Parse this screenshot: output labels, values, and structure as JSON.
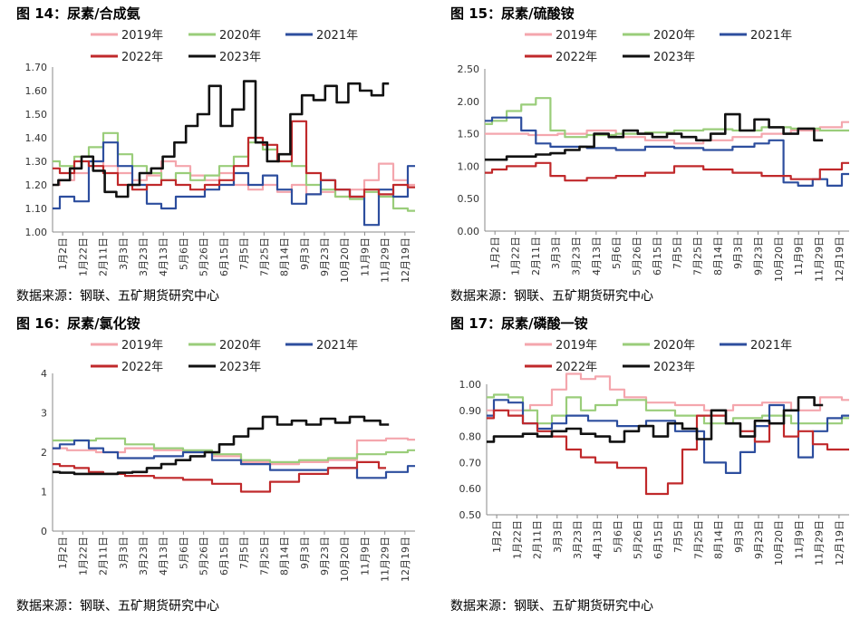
{
  "legend_colors": [
    "#f4a6ad",
    "#9acd7a",
    "#2d4e9e",
    "#c0292b",
    "#111111"
  ],
  "source_text": "数据来源：钢联、五矿期货研究中心",
  "x_ticks": [
    "1月2日",
    "1月22日",
    "2月11日",
    "3月3日",
    "3月23日",
    "4月13日",
    "5月6日",
    "5月26日",
    "6月15日",
    "7月5日",
    "7月25日",
    "8月14日",
    "9月3日",
    "9月23日",
    "10月20日",
    "11月9日",
    "11月29日",
    "12月19日"
  ],
  "chart_data": [
    {
      "type": "line",
      "title": "图 14：尿素/合成氨",
      "ylim": [
        1.0,
        1.7
      ],
      "yticks": [
        "1.00",
        "1.10",
        "1.20",
        "1.30",
        "1.40",
        "1.50",
        "1.60",
        "1.70"
      ],
      "x_domain": [
        0,
        250
      ],
      "series": [
        {
          "name": "2019年",
          "x": [
            0,
            10,
            20,
            30,
            40,
            50,
            60,
            70,
            80,
            90,
            100,
            110,
            120,
            130,
            140,
            150,
            160,
            170,
            180,
            190,
            200,
            210,
            220,
            230,
            240,
            250
          ],
          "values": [
            1.2,
            1.22,
            1.25,
            1.3,
            1.28,
            1.25,
            1.22,
            1.24,
            1.3,
            1.28,
            1.24,
            1.22,
            1.25,
            1.2,
            1.18,
            1.2,
            1.17,
            1.2,
            1.16,
            1.17,
            1.15,
            1.18,
            1.22,
            1.29,
            1.22,
            1.2
          ]
        },
        {
          "name": "2020年",
          "x": [
            0,
            10,
            20,
            30,
            40,
            50,
            60,
            70,
            80,
            90,
            100,
            110,
            120,
            130,
            140,
            150,
            160,
            170,
            180,
            190,
            200,
            210,
            220,
            230,
            240,
            250
          ],
          "values": [
            1.3,
            1.28,
            1.32,
            1.36,
            1.42,
            1.33,
            1.28,
            1.25,
            1.22,
            1.25,
            1.22,
            1.24,
            1.28,
            1.32,
            1.38,
            1.35,
            1.3,
            1.28,
            1.2,
            1.18,
            1.15,
            1.14,
            1.17,
            1.15,
            1.1,
            1.09
          ]
        },
        {
          "name": "2021年",
          "x": [
            0,
            10,
            20,
            30,
            40,
            50,
            60,
            70,
            80,
            90,
            100,
            110,
            120,
            130,
            140,
            150,
            160,
            170,
            180,
            190,
            200,
            210,
            220,
            230,
            240,
            250
          ],
          "values": [
            1.1,
            1.15,
            1.13,
            1.3,
            1.38,
            1.28,
            1.2,
            1.12,
            1.1,
            1.15,
            1.15,
            1.18,
            1.2,
            1.25,
            1.2,
            1.24,
            1.18,
            1.12,
            1.16,
            1.22,
            1.18,
            1.15,
            1.03,
            1.18,
            1.15,
            1.28
          ]
        },
        {
          "name": "2022年",
          "x": [
            0,
            10,
            20,
            30,
            40,
            50,
            60,
            70,
            80,
            90,
            100,
            110,
            120,
            130,
            140,
            150,
            160,
            170,
            180,
            190,
            200,
            210,
            220,
            230,
            240,
            250
          ],
          "values": [
            1.27,
            1.25,
            1.3,
            1.28,
            1.25,
            1.2,
            1.18,
            1.2,
            1.22,
            1.2,
            1.18,
            1.2,
            1.22,
            1.28,
            1.4,
            1.37,
            1.3,
            1.47,
            1.25,
            1.22,
            1.18,
            1.15,
            1.18,
            1.16,
            1.2,
            1.19
          ]
        },
        {
          "name": "2023年",
          "x": [
            0,
            8,
            16,
            24,
            32,
            40,
            48,
            56,
            64,
            72,
            80,
            88,
            96,
            104,
            112,
            120,
            128,
            136,
            144,
            152,
            160,
            168,
            176,
            184,
            192,
            200,
            208,
            216,
            224,
            232
          ],
          "values": [
            1.2,
            1.22,
            1.27,
            1.32,
            1.26,
            1.17,
            1.15,
            1.2,
            1.25,
            1.27,
            1.32,
            1.38,
            1.45,
            1.5,
            1.62,
            1.45,
            1.52,
            1.64,
            1.38,
            1.3,
            1.33,
            1.5,
            1.58,
            1.56,
            1.62,
            1.55,
            1.63,
            1.6,
            1.58,
            1.63
          ]
        }
      ]
    },
    {
      "type": "line",
      "title": "图 15：尿素/硫酸铵",
      "ylim": [
        0.0,
        2.5
      ],
      "yticks": [
        "0.00",
        "0.50",
        "1.00",
        "1.50",
        "2.00",
        "2.50"
      ],
      "x_domain": [
        0,
        250
      ],
      "series": [
        {
          "name": "2019年",
          "x": [
            0,
            20,
            40,
            60,
            80,
            100,
            120,
            140,
            160,
            180,
            200,
            220,
            240,
            250
          ],
          "values": [
            1.5,
            1.5,
            1.48,
            1.5,
            1.55,
            1.45,
            1.4,
            1.35,
            1.4,
            1.45,
            1.5,
            1.55,
            1.6,
            1.68
          ]
        },
        {
          "name": "2020年",
          "x": [
            0,
            10,
            20,
            30,
            40,
            50,
            60,
            80,
            100,
            120,
            140,
            160,
            180,
            200,
            220,
            240,
            250
          ],
          "values": [
            1.65,
            1.7,
            1.85,
            1.95,
            2.05,
            1.55,
            1.45,
            1.48,
            1.5,
            1.52,
            1.55,
            1.57,
            1.55,
            1.6,
            1.58,
            1.55,
            1.55
          ]
        },
        {
          "name": "2021年",
          "x": [
            0,
            10,
            20,
            30,
            40,
            50,
            60,
            80,
            100,
            120,
            140,
            160,
            180,
            190,
            200,
            210,
            220,
            230,
            240,
            250
          ],
          "values": [
            1.7,
            1.75,
            1.75,
            1.55,
            1.35,
            1.3,
            1.3,
            1.28,
            1.25,
            1.3,
            1.28,
            1.25,
            1.3,
            1.35,
            1.4,
            0.75,
            0.7,
            0.8,
            0.7,
            0.88
          ]
        },
        {
          "name": "2022年",
          "x": [
            0,
            10,
            20,
            30,
            40,
            50,
            60,
            80,
            100,
            120,
            140,
            160,
            180,
            200,
            220,
            240,
            250
          ],
          "values": [
            0.9,
            0.95,
            1.0,
            1.0,
            1.05,
            0.85,
            0.78,
            0.82,
            0.85,
            0.9,
            1.0,
            0.95,
            0.9,
            0.85,
            0.8,
            0.95,
            1.05
          ]
        },
        {
          "name": "2023年",
          "x": [
            0,
            10,
            20,
            30,
            40,
            50,
            60,
            70,
            80,
            90,
            100,
            110,
            120,
            130,
            140,
            150,
            160,
            170,
            180,
            190,
            200,
            210,
            220,
            232
          ],
          "values": [
            1.1,
            1.1,
            1.15,
            1.15,
            1.18,
            1.2,
            1.25,
            1.3,
            1.5,
            1.45,
            1.55,
            1.5,
            1.45,
            1.5,
            1.45,
            1.4,
            1.5,
            1.8,
            1.55,
            1.72,
            1.6,
            1.5,
            1.58,
            1.4
          ]
        }
      ]
    },
    {
      "type": "line",
      "title": "图 16：尿素/氯化铵",
      "ylim": [
        0,
        4
      ],
      "yticks": [
        "0",
        "1",
        "2",
        "3",
        "4"
      ],
      "x_domain": [
        0,
        250
      ],
      "series": [
        {
          "name": "2019年",
          "x": [
            0,
            20,
            40,
            60,
            80,
            100,
            120,
            140,
            160,
            180,
            200,
            220,
            240,
            250
          ],
          "values": [
            2.1,
            2.05,
            2.0,
            2.1,
            2.05,
            2.0,
            1.9,
            1.75,
            1.7,
            1.75,
            1.8,
            2.3,
            2.35,
            2.32
          ]
        },
        {
          "name": "2020年",
          "x": [
            0,
            20,
            40,
            60,
            80,
            100,
            120,
            140,
            160,
            180,
            200,
            220,
            240,
            250
          ],
          "values": [
            2.3,
            2.3,
            2.35,
            2.2,
            2.1,
            2.05,
            1.95,
            1.8,
            1.75,
            1.8,
            1.85,
            1.95,
            2.0,
            2.05
          ]
        },
        {
          "name": "2021年",
          "x": [
            0,
            10,
            20,
            30,
            40,
            50,
            60,
            80,
            100,
            120,
            140,
            160,
            180,
            200,
            220,
            240,
            250
          ],
          "values": [
            2.1,
            2.2,
            2.3,
            2.1,
            2.0,
            1.85,
            1.85,
            1.9,
            2.0,
            1.8,
            1.7,
            1.55,
            1.55,
            1.6,
            1.35,
            1.5,
            1.65
          ]
        },
        {
          "name": "2022年",
          "x": [
            0,
            10,
            20,
            30,
            40,
            60,
            80,
            100,
            120,
            140,
            160,
            180,
            200,
            220,
            230
          ],
          "values": [
            1.7,
            1.65,
            1.6,
            1.5,
            1.45,
            1.4,
            1.35,
            1.3,
            1.2,
            1.0,
            1.25,
            1.45,
            1.6,
            1.75,
            1.6
          ]
        },
        {
          "name": "2023年",
          "x": [
            0,
            10,
            20,
            30,
            40,
            50,
            60,
            70,
            80,
            90,
            100,
            110,
            120,
            130,
            140,
            150,
            160,
            170,
            180,
            190,
            200,
            210,
            220,
            232
          ],
          "values": [
            1.5,
            1.48,
            1.45,
            1.45,
            1.45,
            1.48,
            1.5,
            1.6,
            1.7,
            1.8,
            1.9,
            2.0,
            2.2,
            2.4,
            2.6,
            2.9,
            2.7,
            2.8,
            2.7,
            2.85,
            2.75,
            2.9,
            2.8,
            2.7
          ]
        }
      ]
    },
    {
      "type": "line",
      "title": "图 17：尿素/磷酸一铵",
      "ylim": [
        0.5,
        1.0
      ],
      "yticks": [
        "0.50",
        "0.60",
        "0.70",
        "0.80",
        "0.90",
        "1.00"
      ],
      "x_domain": [
        0,
        250
      ],
      "series": [
        {
          "name": "2019年",
          "x": [
            0,
            20,
            40,
            50,
            60,
            70,
            80,
            90,
            100,
            120,
            140,
            160,
            180,
            200,
            220,
            240,
            250
          ],
          "values": [
            0.9,
            0.9,
            0.92,
            0.98,
            1.04,
            1.02,
            1.03,
            0.98,
            0.95,
            0.93,
            0.92,
            0.9,
            0.92,
            0.93,
            0.9,
            0.95,
            0.94
          ]
        },
        {
          "name": "2020年",
          "x": [
            0,
            10,
            20,
            30,
            40,
            50,
            60,
            70,
            80,
            100,
            120,
            140,
            160,
            180,
            200,
            220,
            240,
            250
          ],
          "values": [
            0.95,
            0.96,
            0.95,
            0.9,
            0.85,
            0.88,
            0.95,
            0.9,
            0.92,
            0.94,
            0.9,
            0.88,
            0.85,
            0.87,
            0.88,
            0.85,
            0.85,
            0.87
          ]
        },
        {
          "name": "2021年",
          "x": [
            0,
            10,
            20,
            30,
            40,
            50,
            60,
            80,
            100,
            120,
            140,
            160,
            170,
            180,
            190,
            200,
            210,
            220,
            230,
            240,
            250
          ],
          "values": [
            0.88,
            0.94,
            0.93,
            0.85,
            0.83,
            0.85,
            0.88,
            0.86,
            0.84,
            0.86,
            0.82,
            0.7,
            0.66,
            0.74,
            0.84,
            0.92,
            0.9,
            0.72,
            0.82,
            0.87,
            0.88
          ]
        },
        {
          "name": "2022年",
          "x": [
            0,
            10,
            20,
            30,
            40,
            50,
            60,
            70,
            80,
            100,
            120,
            130,
            140,
            150,
            160,
            170,
            180,
            190,
            200,
            210,
            220,
            230,
            240,
            250
          ],
          "values": [
            0.87,
            0.9,
            0.88,
            0.85,
            0.82,
            0.8,
            0.75,
            0.72,
            0.7,
            0.68,
            0.58,
            0.62,
            0.75,
            0.88,
            0.88,
            0.85,
            0.82,
            0.78,
            0.85,
            0.8,
            0.82,
            0.77,
            0.75,
            0.75
          ]
        },
        {
          "name": "2023年",
          "x": [
            0,
            10,
            20,
            30,
            40,
            50,
            60,
            70,
            80,
            90,
            100,
            110,
            120,
            130,
            140,
            150,
            160,
            170,
            180,
            190,
            200,
            210,
            220,
            232
          ],
          "values": [
            0.78,
            0.8,
            0.8,
            0.81,
            0.8,
            0.82,
            0.83,
            0.81,
            0.8,
            0.78,
            0.82,
            0.84,
            0.8,
            0.85,
            0.83,
            0.79,
            0.9,
            0.85,
            0.8,
            0.86,
            0.85,
            0.9,
            0.95,
            0.92
          ]
        }
      ]
    }
  ]
}
